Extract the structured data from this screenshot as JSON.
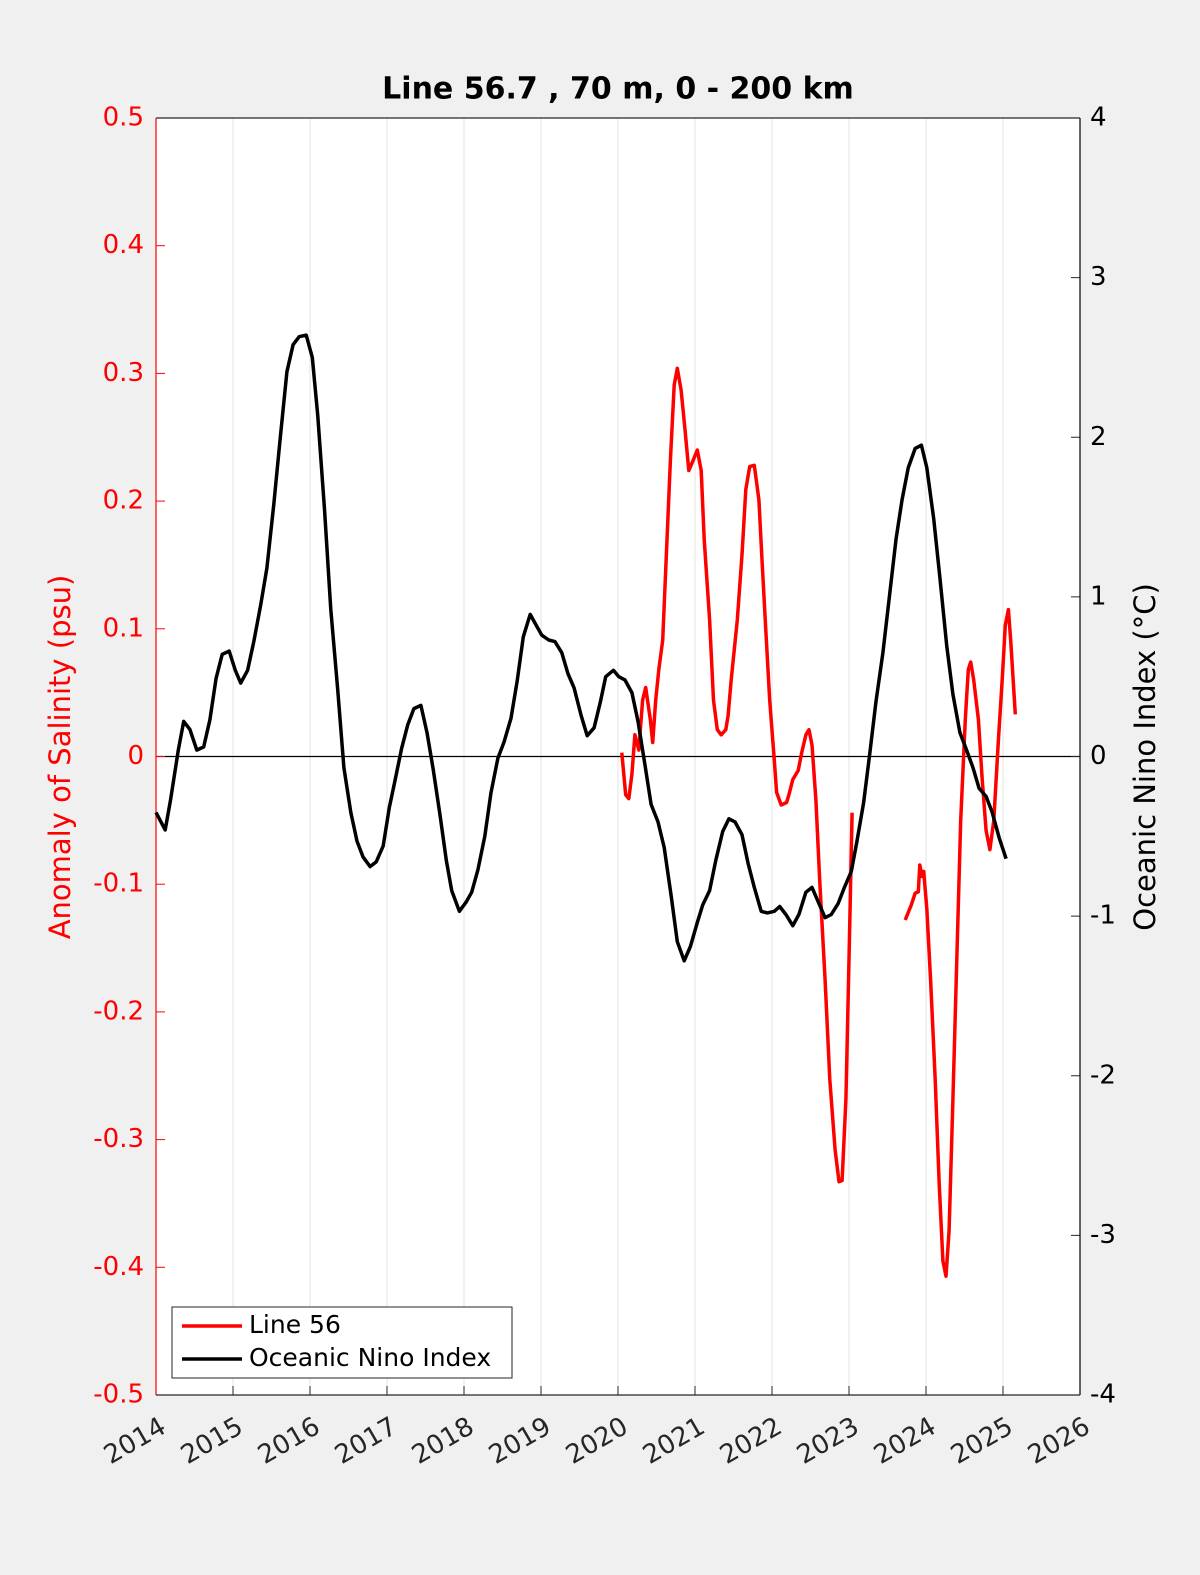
{
  "chart_data": {
    "type": "line",
    "title": "Line 56.7 , 70 m, 0 - 200 km",
    "ylabel": "Anomaly of Salinity (psu)",
    "y2label": "Oceanic Nino Index (°C)",
    "xlim": [
      2014,
      2026
    ],
    "xticks": [
      2014,
      2015,
      2016,
      2017,
      2018,
      2019,
      2020,
      2021,
      2022,
      2023,
      2024,
      2025,
      2026
    ],
    "ylim": [
      -0.5,
      0.5
    ],
    "yticks": [
      -0.5,
      -0.4,
      -0.3,
      -0.2,
      -0.1,
      0,
      0.1,
      0.2,
      0.3,
      0.4,
      0.5
    ],
    "y2lim": [
      -4,
      4
    ],
    "y2ticks": [
      -4,
      -3,
      -2,
      -1,
      0,
      1,
      2,
      3,
      4
    ],
    "xgrid": true,
    "legend": "lower left",
    "series": [
      {
        "name": "Line 56",
        "color": "#ff0000",
        "axis": "y",
        "x": [
          2020.05,
          2020.1,
          2020.14,
          2020.18,
          2020.22,
          2020.27,
          2020.32,
          2020.36,
          2020.42,
          2020.45,
          2020.49,
          2020.53,
          2020.58,
          2020.62,
          2020.68,
          2020.73,
          2020.77,
          2020.82,
          2020.87,
          2020.92,
          2020.97,
          2021.03,
          2021.08,
          2021.12,
          2021.19,
          2021.24,
          2021.29,
          2021.34,
          2021.4,
          2021.43,
          2021.47,
          2021.55,
          2021.61,
          2021.66,
          2021.71,
          2021.77,
          2021.83,
          2021.87,
          2021.92,
          2021.97,
          2022.03,
          2022.06,
          2022.12,
          2022.19,
          2022.22,
          2022.27,
          2022.34,
          2022.39,
          2022.44,
          2022.48,
          2022.52,
          2022.57,
          2022.62,
          2022.69,
          2022.75,
          2022.82,
          2022.87,
          2022.91,
          2022.96,
          2023.0,
          2023.04,
          2023.4,
          2023.73,
          2023.81,
          2023.86,
          2023.9,
          2023.92,
          2023.95,
          2023.97,
          2024.01,
          2024.06,
          2024.12,
          2024.17,
          2024.22,
          2024.26,
          2024.3,
          2024.35,
          2024.4,
          2024.45,
          2024.51,
          2024.55,
          2024.58,
          2024.62,
          2024.68,
          2024.73,
          2024.78,
          2024.83,
          2024.88,
          2024.94,
          2024.99,
          2025.03,
          2025.07,
          2025.1,
          2025.16
        ],
        "values": [
          0.003,
          -0.03,
          -0.033,
          -0.014,
          0.017,
          0.005,
          0.044,
          0.054,
          0.029,
          0.011,
          0.044,
          0.068,
          0.091,
          0.146,
          0.232,
          0.291,
          0.304,
          0.287,
          0.256,
          0.224,
          0.231,
          0.24,
          0.224,
          0.17,
          0.107,
          0.044,
          0.021,
          0.017,
          0.021,
          0.032,
          0.06,
          0.107,
          0.158,
          0.209,
          0.227,
          0.228,
          0.201,
          0.154,
          0.099,
          0.044,
          -0.003,
          -0.028,
          -0.038,
          -0.036,
          -0.03,
          -0.018,
          -0.011,
          0.004,
          0.017,
          0.021,
          0.009,
          -0.034,
          -0.097,
          -0.175,
          -0.253,
          -0.308,
          -0.333,
          -0.332,
          -0.269,
          -0.159,
          -0.044,
          null,
          -0.128,
          -0.116,
          -0.107,
          -0.106,
          -0.085,
          -0.094,
          -0.09,
          -0.119,
          -0.175,
          -0.253,
          -0.333,
          -0.395,
          -0.407,
          -0.371,
          -0.269,
          -0.159,
          -0.05,
          0.029,
          0.068,
          0.074,
          0.06,
          0.029,
          -0.018,
          -0.058,
          -0.073,
          -0.05,
          0.013,
          0.06,
          0.103,
          0.115,
          0.091,
          0.033
        ]
      },
      {
        "name": "Oceanic Nino Index",
        "color": "#000000",
        "axis": "y2",
        "x": [
          2014.0,
          2014.12,
          2014.19,
          2014.29,
          2014.36,
          2014.44,
          2014.53,
          2014.62,
          2014.7,
          2014.78,
          2014.86,
          2014.95,
          2015.03,
          2015.1,
          2015.19,
          2015.27,
          2015.36,
          2015.44,
          2015.53,
          2015.61,
          2015.7,
          2015.78,
          2015.86,
          2015.95,
          2016.03,
          2016.1,
          2016.19,
          2016.27,
          2016.36,
          2016.44,
          2016.53,
          2016.61,
          2016.69,
          2016.78,
          2016.86,
          2016.95,
          2017.03,
          2017.1,
          2017.19,
          2017.27,
          2017.35,
          2017.44,
          2017.52,
          2017.6,
          2017.69,
          2017.77,
          2017.84,
          2017.94,
          2018.03,
          2018.1,
          2018.18,
          2018.27,
          2018.35,
          2018.44,
          2018.52,
          2018.61,
          2018.69,
          2018.77,
          2018.86,
          2018.94,
          2019.01,
          2019.1,
          2019.18,
          2019.27,
          2019.35,
          2019.43,
          2019.52,
          2019.6,
          2019.69,
          2019.77,
          2019.84,
          2019.94,
          2020.01,
          2020.09,
          2020.18,
          2020.26,
          2020.35,
          2020.43,
          2020.52,
          2020.6,
          2020.69,
          2020.77,
          2020.86,
          2020.94,
          2021.03,
          2021.1,
          2021.19,
          2021.27,
          2021.36,
          2021.44,
          2021.52,
          2021.61,
          2021.69,
          2021.77,
          2021.86,
          2021.94,
          2022.03,
          2022.1,
          2022.18,
          2022.27,
          2022.35,
          2022.44,
          2022.52,
          2022.6,
          2022.69,
          2022.77,
          2022.86,
          2022.94,
          2023.03,
          2023.1,
          2023.19,
          2023.27,
          2023.35,
          2023.44,
          2023.52,
          2023.61,
          2023.69,
          2023.77,
          2023.86,
          2023.94,
          2024.01,
          2024.1,
          2024.18,
          2024.27,
          2024.35,
          2024.44,
          2024.52,
          2024.61,
          2024.69,
          2024.78,
          2024.86,
          2024.95,
          2025.04
        ],
        "values": [
          -0.35,
          -0.46,
          -0.27,
          0.04,
          0.22,
          0.17,
          0.04,
          0.06,
          0.23,
          0.49,
          0.64,
          0.66,
          0.54,
          0.46,
          0.54,
          0.72,
          0.95,
          1.18,
          1.58,
          1.98,
          2.41,
          2.58,
          2.63,
          2.64,
          2.5,
          2.14,
          1.54,
          0.92,
          0.42,
          -0.07,
          -0.35,
          -0.53,
          -0.63,
          -0.69,
          -0.66,
          -0.56,
          -0.32,
          -0.16,
          0.05,
          0.2,
          0.3,
          0.32,
          0.15,
          -0.08,
          -0.37,
          -0.65,
          -0.84,
          -0.97,
          -0.91,
          -0.85,
          -0.71,
          -0.5,
          -0.23,
          -0.01,
          0.09,
          0.24,
          0.47,
          0.75,
          0.89,
          0.82,
          0.76,
          0.73,
          0.72,
          0.65,
          0.52,
          0.43,
          0.26,
          0.13,
          0.18,
          0.34,
          0.5,
          0.54,
          0.5,
          0.48,
          0.4,
          0.22,
          -0.05,
          -0.3,
          -0.41,
          -0.57,
          -0.87,
          -1.16,
          -1.28,
          -1.19,
          -1.04,
          -0.93,
          -0.84,
          -0.65,
          -0.47,
          -0.39,
          -0.41,
          -0.49,
          -0.67,
          -0.82,
          -0.97,
          -0.98,
          -0.97,
          -0.94,
          -0.99,
          -1.06,
          -0.99,
          -0.85,
          -0.82,
          -0.91,
          -1.01,
          -0.99,
          -0.92,
          -0.82,
          -0.72,
          -0.54,
          -0.29,
          0.02,
          0.34,
          0.65,
          0.98,
          1.36,
          1.61,
          1.81,
          1.93,
          1.95,
          1.81,
          1.49,
          1.12,
          0.69,
          0.39,
          0.15,
          0.05,
          -0.07,
          -0.2,
          -0.25,
          -0.35,
          -0.51,
          -0.64
        ]
      }
    ]
  }
}
